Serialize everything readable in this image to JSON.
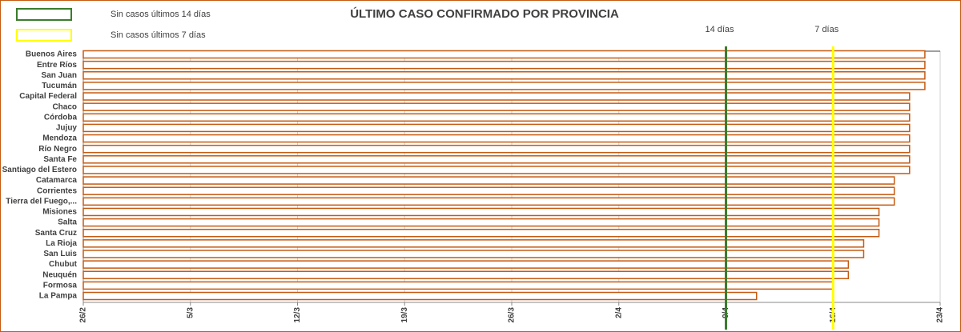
{
  "chart_data": {
    "type": "bar",
    "orientation": "horizontal",
    "title": "ÚLTIMO CASO CONFIRMADO POR PROVINCIA",
    "categories": [
      "Buenos Aires",
      "Entre Ríos",
      "San Juan",
      "Tucumán",
      "Capital Federal",
      "Chaco",
      "Córdoba",
      "Jujuy",
      "Mendoza",
      "Río Negro",
      "Santa Fe",
      "Santiago del Estero",
      "Catamarca",
      "Corrientes",
      "Tierra del Fuego,...",
      "Misiones",
      "Salta",
      "Santa Cruz",
      "La Rioja",
      "San Luis",
      "Chubut",
      "Neuquén",
      "Formosa",
      "La Pampa"
    ],
    "values": [
      112,
      112,
      112,
      112,
      111,
      111,
      111,
      111,
      111,
      111,
      111,
      111,
      110,
      110,
      110,
      109,
      109,
      109,
      108,
      108,
      107,
      107,
      106,
      101
    ],
    "color": "#c55a11",
    "xlim": [
      57,
      113
    ],
    "xticks": [
      {
        "value": 57,
        "label": "26/2"
      },
      {
        "value": 64,
        "label": "5/3"
      },
      {
        "value": 71,
        "label": "12/3"
      },
      {
        "value": 78,
        "label": "19/3"
      },
      {
        "value": 85,
        "label": "26/3"
      },
      {
        "value": 92,
        "label": "2/4"
      },
      {
        "value": 99,
        "label": "9/4"
      },
      {
        "value": 106,
        "label": "16/4"
      },
      {
        "value": 113,
        "label": "23/4"
      }
    ],
    "grid": true,
    "reference_lines": [
      {
        "label": "14 días",
        "value": 99,
        "color": "#3a7d2c"
      },
      {
        "label": "7 días",
        "value": 106,
        "color": "#ffff00"
      }
    ],
    "legend": [
      {
        "name": "Sin casos últimos 14 días",
        "color": "#3a7d2c"
      },
      {
        "name": "Sin casos últimos 7 días",
        "color": "#ffff00"
      }
    ]
  }
}
